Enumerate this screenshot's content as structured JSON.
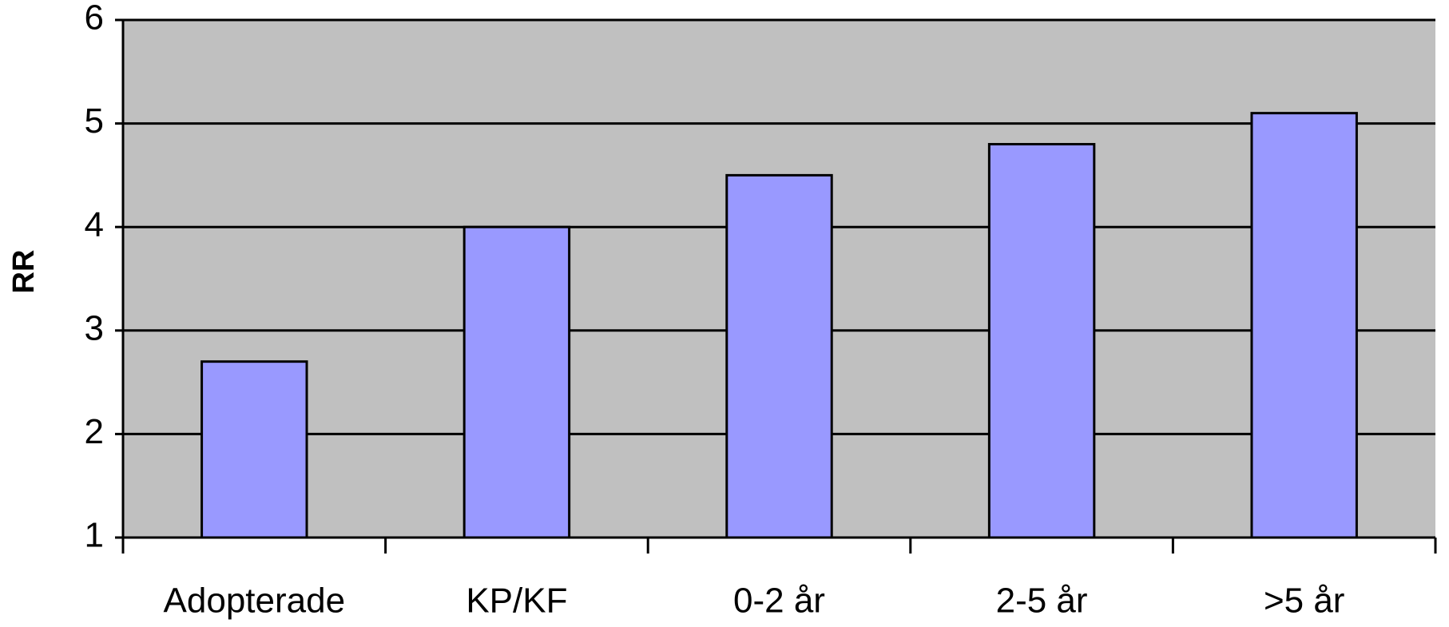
{
  "chart_data": {
    "type": "bar",
    "y_label": "RR",
    "categories": [
      "Adopterade",
      "KP/KF",
      "0-2 år",
      "2-5 år",
      ">5 år"
    ],
    "values": [
      2.7,
      4.0,
      4.5,
      4.8,
      5.1
    ],
    "color": "#9999ff",
    "plot_background": "#c0c0c0",
    "ylim": [
      1,
      6
    ],
    "yticks": [
      1,
      2,
      3,
      4,
      5,
      6
    ],
    "grid": true
  }
}
